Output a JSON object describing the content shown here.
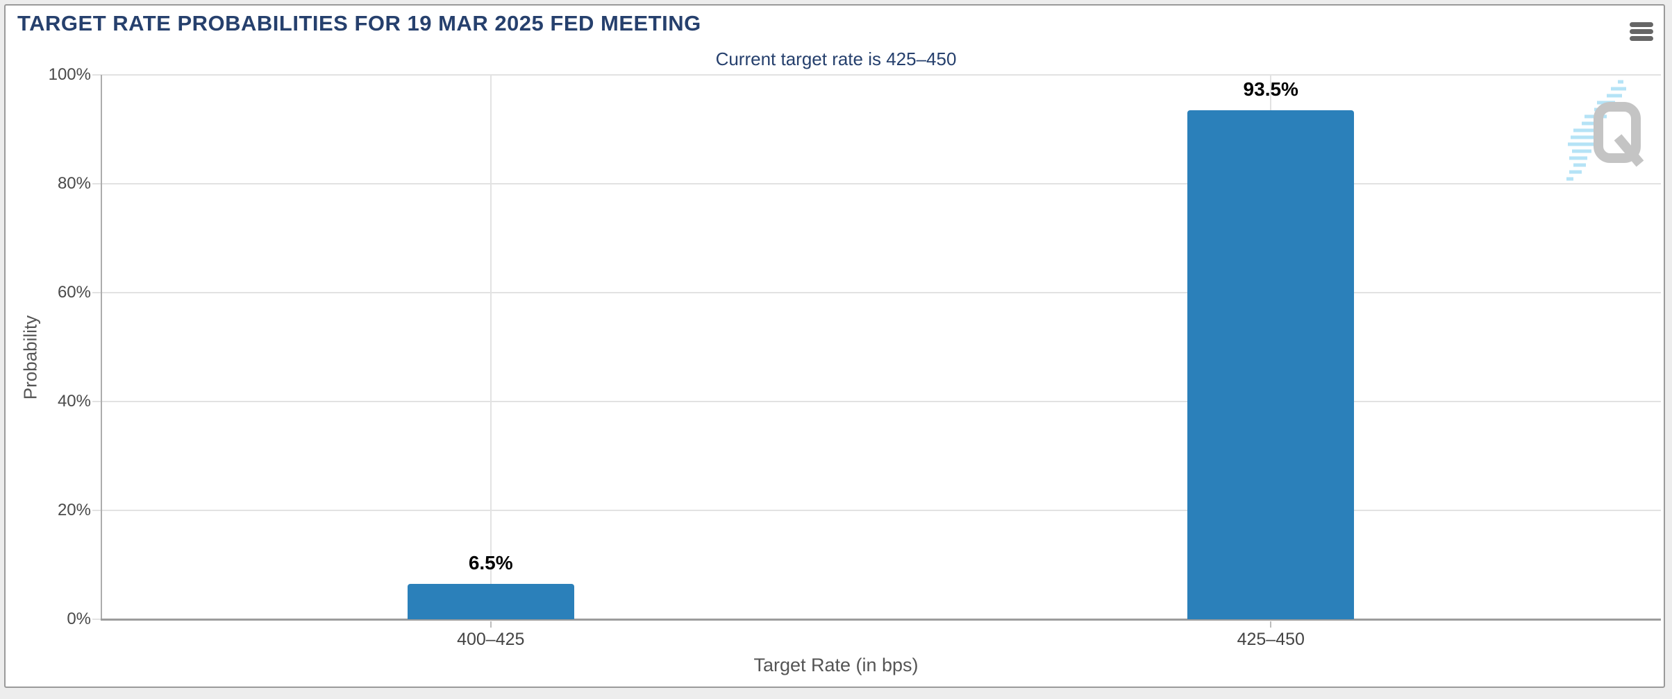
{
  "header": {
    "title": "TARGET RATE PROBABILITIES FOR 19 MAR 2025 FED MEETING",
    "export_menu_icon": "hamburger-icon"
  },
  "watermark": {
    "letter": "Q"
  },
  "chart_data": {
    "type": "bar",
    "title": "TARGET RATE PROBABILITIES FOR 19 MAR 2025 FED MEETING",
    "subtitle": "Current target rate is 425–450",
    "categories": [
      "400–425",
      "425–450"
    ],
    "values": [
      6.5,
      93.5
    ],
    "value_labels": [
      "6.5%",
      "93.5%"
    ],
    "xlabel": "Target Rate (in bps)",
    "ylabel": "Probability",
    "ylim": [
      0,
      100
    ],
    "ytick_step": 20,
    "ytick_labels": [
      "0%",
      "20%",
      "40%",
      "60%",
      "80%",
      "100%"
    ],
    "grid": true,
    "legend": "none",
    "bar_color": "#2b80ba",
    "title_color": "#26406d",
    "axis_text_color": "#4a4a4a",
    "gridline_color": "#e2e2e2",
    "watermark_gray": "#c4c4c4",
    "watermark_blue": "#b5e3f6"
  }
}
